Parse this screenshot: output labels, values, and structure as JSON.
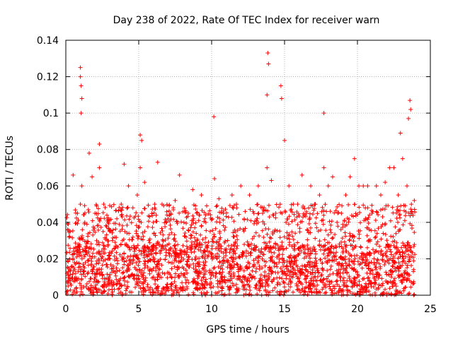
{
  "chart_data": {
    "type": "scatter",
    "title": "Day 238 of 2022, Rate Of TEC Index for receiver warn",
    "xlabel": "GPS time / hours",
    "ylabel": "ROTI / TECUs",
    "xlim": [
      0,
      25
    ],
    "ylim": [
      0,
      0.14
    ],
    "xticks": [
      0,
      5,
      10,
      15,
      20,
      25
    ],
    "yticks": [
      0,
      0.02,
      0.04,
      0.06,
      0.08,
      0.1,
      0.12,
      0.14
    ],
    "grid": true,
    "marker": "plus",
    "color": "#ff0000",
    "x": [
      0.1,
      0.3,
      0.5,
      0.8,
      1.0,
      1.1,
      1.3,
      1.6,
      1.8,
      2.0,
      2.3,
      2.6,
      2.9,
      3.2,
      3.5,
      3.8,
      4.0,
      4.3,
      4.6,
      4.9,
      5.1,
      5.4,
      5.7,
      6.0,
      6.3,
      6.6,
      6.9,
      7.2,
      7.5,
      7.8,
      8.1,
      8.4,
      8.7,
      9.0,
      9.3,
      9.6,
      9.9,
      10.2,
      10.5,
      10.8,
      11.1,
      11.4,
      11.7,
      12.0,
      12.3,
      12.6,
      12.9,
      13.2,
      13.5,
      13.8,
      14.1,
      14.4,
      14.7,
      15.0,
      15.3,
      15.6,
      15.9,
      16.2,
      16.5,
      16.8,
      17.1,
      17.4,
      17.7,
      18.0,
      18.3,
      18.6,
      18.9,
      19.2,
      19.5,
      19.8,
      20.1,
      20.4,
      20.7,
      21.0,
      21.3,
      21.6,
      21.9,
      22.2,
      22.5,
      22.8,
      23.1,
      23.4,
      23.7,
      23.9,
      1.0,
      1.0,
      1.05,
      1.1,
      1.05,
      13.85,
      13.9,
      13.8,
      14.75,
      14.8,
      17.7,
      10.15,
      23.6,
      23.65,
      22.95,
      5.1,
      5.2,
      2.3,
      23.5
    ],
    "y": [
      0.012,
      0.035,
      0.066,
      0.045,
      0.05,
      0.06,
      0.04,
      0.078,
      0.065,
      0.045,
      0.07,
      0.05,
      0.04,
      0.03,
      0.042,
      0.05,
      0.072,
      0.06,
      0.048,
      0.055,
      0.07,
      0.062,
      0.03,
      0.04,
      0.073,
      0.05,
      0.04,
      0.045,
      0.052,
      0.066,
      0.04,
      0.045,
      0.058,
      0.03,
      0.055,
      0.04,
      0.035,
      0.064,
      0.053,
      0.045,
      0.03,
      0.055,
      0.05,
      0.06,
      0.046,
      0.055,
      0.045,
      0.06,
      0.045,
      0.07,
      0.063,
      0.045,
      0.05,
      0.085,
      0.06,
      0.05,
      0.05,
      0.066,
      0.045,
      0.06,
      0.05,
      0.055,
      0.07,
      0.06,
      0.065,
      0.04,
      0.045,
      0.055,
      0.065,
      0.075,
      0.06,
      0.06,
      0.06,
      0.045,
      0.06,
      0.055,
      0.062,
      0.07,
      0.07,
      0.055,
      0.075,
      0.06,
      0.05,
      0.052,
      0.125,
      0.12,
      0.115,
      0.108,
      0.1,
      0.133,
      0.127,
      0.11,
      0.115,
      0.108,
      0.1,
      0.098,
      0.107,
      0.102,
      0.089,
      0.088,
      0.085,
      0.083,
      0.097
    ]
  }
}
